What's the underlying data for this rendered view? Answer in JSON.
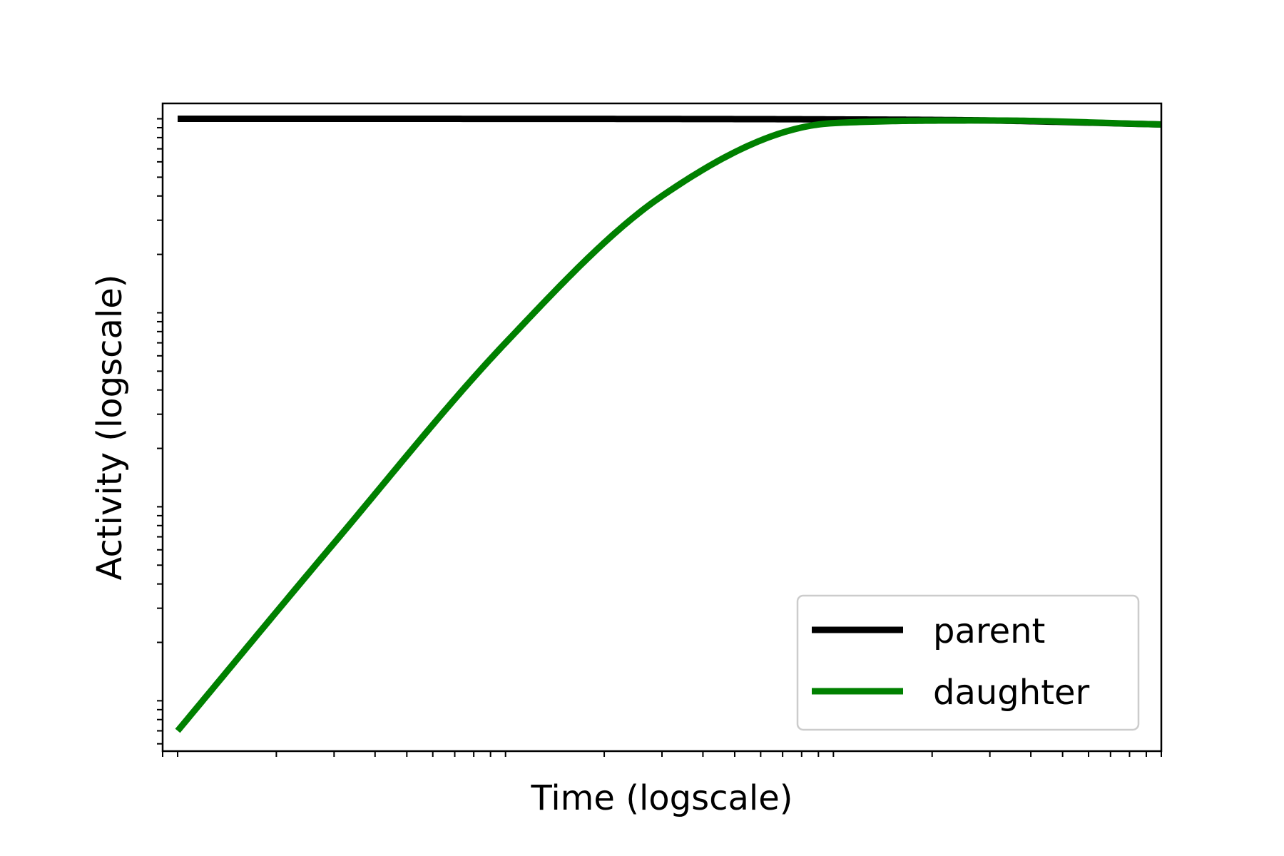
{
  "chart_data": {
    "type": "line",
    "xlabel": "Time (logscale)",
    "ylabel": "Activity (logscale)",
    "xscale": "log",
    "yscale": "log",
    "grid": false,
    "legend_position": "lower-right",
    "series": [
      {
        "name": "parent",
        "color": "#000000",
        "x": [
          0.1,
          0.3,
          1,
          3,
          10,
          30,
          100
        ],
        "y": [
          1.0,
          1.0,
          0.9995,
          0.998,
          0.993,
          0.98,
          0.935
        ]
      },
      {
        "name": "daughter",
        "color": "#008000",
        "x": [
          0.1,
          0.3,
          1,
          3,
          10,
          30,
          100
        ],
        "y": [
          0.0007,
          0.0065,
          0.07,
          0.4,
          0.95,
          0.98,
          0.935
        ]
      }
    ]
  }
}
